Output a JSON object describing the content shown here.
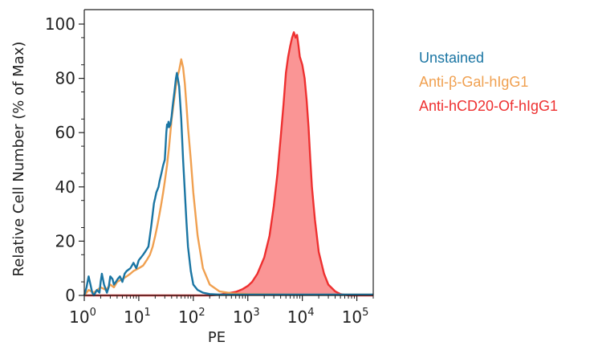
{
  "chart_data": {
    "type": "area",
    "title": "",
    "xlabel": "PE",
    "ylabel": "Relative Cell Number (% of Max)",
    "x_scale": "log10",
    "xlim": [
      1,
      200000
    ],
    "ylim": [
      0,
      100
    ],
    "x_ticks": [
      {
        "value": 1,
        "base": "10",
        "exp": "0"
      },
      {
        "value": 10,
        "base": "10",
        "exp": "1"
      },
      {
        "value": 100,
        "base": "10",
        "exp": "2"
      },
      {
        "value": 1000,
        "base": "10",
        "exp": "3"
      },
      {
        "value": 10000,
        "base": "10",
        "exp": "4"
      },
      {
        "value": 100000,
        "base": "10",
        "exp": "5"
      }
    ],
    "y_ticks": [
      "0",
      "20",
      "40",
      "60",
      "80",
      "100"
    ],
    "grid": false,
    "legend_position": "right",
    "series": [
      {
        "name": "Unstained",
        "color": "#1a75a3",
        "filled": false,
        "x": [
          1,
          1.1,
          1.2,
          1.3,
          1.4,
          1.5,
          1.7,
          1.9,
          2,
          2.1,
          2.3,
          2.6,
          2.8,
          3,
          3.3,
          3.5,
          3.8,
          4.1,
          4.5,
          5,
          5.5,
          6,
          7,
          7.5,
          8,
          9,
          10,
          11,
          12,
          13,
          14,
          15,
          16,
          17,
          18,
          19,
          20,
          21,
          22,
          23,
          24,
          26,
          28,
          30,
          31,
          32,
          33,
          34,
          35,
          36,
          38,
          40,
          42,
          45,
          48,
          50,
          55,
          60,
          65,
          70,
          75,
          80,
          90,
          100,
          120,
          150,
          200,
          300,
          500,
          1000,
          10000,
          100000,
          200000
        ],
        "y": [
          0,
          3,
          7,
          4,
          1,
          0,
          2,
          1,
          5,
          8,
          4,
          1,
          3,
          7,
          6,
          4,
          5,
          6,
          7,
          5,
          8,
          9,
          10,
          11,
          12,
          10,
          13,
          14,
          15,
          16,
          17,
          18,
          22,
          26,
          30,
          34,
          36,
          38,
          39,
          40,
          42,
          45,
          48,
          50,
          55,
          60,
          63,
          62,
          64,
          62,
          63,
          66,
          70,
          75,
          80,
          82,
          77,
          65,
          50,
          38,
          27,
          18,
          9,
          4,
          2,
          1,
          0.5,
          0.3,
          0.3,
          0.3,
          0.3,
          0.3,
          0.3
        ]
      },
      {
        "name": "Anti-β-Gal-hIgG1",
        "color": "#f0a050",
        "filled": false,
        "x": [
          1,
          1.2,
          1.5,
          2,
          2.5,
          3,
          3.5,
          4,
          5,
          6,
          7,
          8,
          10,
          12,
          14,
          16,
          18,
          20,
          22,
          24,
          26,
          28,
          30,
          33,
          36,
          40,
          45,
          50,
          55,
          60,
          65,
          70,
          75,
          80,
          90,
          100,
          120,
          150,
          200,
          300,
          500,
          1000,
          10000,
          100000,
          200000
        ],
        "y": [
          0,
          2,
          1,
          3,
          2,
          4,
          3,
          5,
          6,
          7,
          8,
          9,
          10,
          11,
          13,
          15,
          18,
          22,
          26,
          30,
          34,
          38,
          42,
          48,
          55,
          65,
          73,
          80,
          83,
          87,
          84,
          78,
          70,
          62,
          50,
          38,
          22,
          10,
          4,
          1.5,
          0.8,
          0.5,
          0.3,
          0.3,
          0.3
        ]
      },
      {
        "name": "Anti-hCD20-Of-hIgG1",
        "color": "#ee3030",
        "fill": "#fa9595",
        "filled": true,
        "x": [
          1,
          100,
          200,
          300,
          400,
          500,
          600,
          700,
          800,
          1000,
          1200,
          1500,
          2000,
          2500,
          3000,
          3500,
          4000,
          4500,
          5000,
          5500,
          6000,
          6500,
          7000,
          7500,
          8000,
          8500,
          9000,
          10000,
          11000,
          12000,
          13000,
          14000,
          15000,
          17000,
          20000,
          25000,
          30000,
          40000,
          50000,
          70000,
          100000,
          200000
        ],
        "y": [
          0,
          0,
          0,
          0.3,
          0.7,
          1,
          1.3,
          1.8,
          2.3,
          3.5,
          5,
          8,
          14,
          22,
          33,
          45,
          58,
          70,
          82,
          88,
          92,
          95,
          97,
          95,
          96,
          92,
          88,
          85,
          80,
          72,
          62,
          50,
          40,
          28,
          16,
          8,
          4,
          1.5,
          0.5,
          0,
          0,
          0
        ]
      }
    ]
  }
}
